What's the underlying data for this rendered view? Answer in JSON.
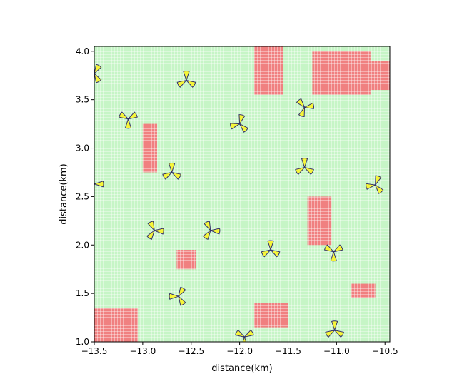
{
  "chart_data": {
    "type": "scatter",
    "title": "",
    "xlabel": "distance(km)",
    "ylabel": "distance(km)",
    "xlim": [
      -13.5,
      -10.45
    ],
    "ylim": [
      1.0,
      4.05
    ],
    "x_ticks": [
      -13.5,
      -13.0,
      -12.5,
      -12.0,
      -11.5,
      -11.0,
      -10.5
    ],
    "x_tick_labels": [
      "−13.5",
      "−13.0",
      "−12.5",
      "−12.0",
      "−11.5",
      "−11.0",
      "−10.5"
    ],
    "y_ticks": [
      1.0,
      1.5,
      2.0,
      2.5,
      3.0,
      3.5,
      4.0
    ],
    "y_tick_labels": [
      "1.0",
      "1.5",
      "2.0",
      "2.5",
      "3.0",
      "3.5",
      "4.0"
    ],
    "grid": false,
    "background_cells": {
      "description_type": "grid map",
      "colors": {
        "free": "#c6f5c6",
        "occupied": "#f08080",
        "cell_border": "#ffffff"
      },
      "occupied_regions": [
        {
          "x": [
            -13.5,
            -13.05
          ],
          "y": [
            1.0,
            1.35
          ]
        },
        {
          "x": [
            -13.0,
            -12.85
          ],
          "y": [
            2.75,
            3.25
          ]
        },
        {
          "x": [
            -11.85,
            -11.55
          ],
          "y": [
            3.55,
            4.05
          ]
        },
        {
          "x": [
            -11.25,
            -10.65
          ],
          "y": [
            3.55,
            4.0
          ]
        },
        {
          "x": [
            -10.72,
            -10.45
          ],
          "y": [
            3.6,
            3.9
          ]
        },
        {
          "x": [
            -11.3,
            -11.05
          ],
          "y": [
            2.0,
            2.5
          ]
        },
        {
          "x": [
            -11.85,
            -11.5
          ],
          "y": [
            1.15,
            1.4
          ]
        },
        {
          "x": [
            -10.85,
            -10.6
          ],
          "y": [
            1.45,
            1.6
          ]
        },
        {
          "x": [
            -12.65,
            -12.45
          ],
          "y": [
            1.75,
            1.95
          ]
        }
      ]
    },
    "marker_style": {
      "shape": "three-blade rotor",
      "fill": "#f5f53a",
      "edge": "#33336a"
    },
    "turbines": [
      {
        "x": -13.5,
        "y": 3.77,
        "angle": 30
      },
      {
        "x": -12.55,
        "y": 3.7,
        "angle": 0
      },
      {
        "x": -13.15,
        "y": 3.3,
        "angle": 60
      },
      {
        "x": -12.0,
        "y": 3.25,
        "angle": 15
      },
      {
        "x": -11.33,
        "y": 3.42,
        "angle": 80
      },
      {
        "x": -12.7,
        "y": 2.75,
        "angle": 0
      },
      {
        "x": -11.33,
        "y": 2.8,
        "angle": 0
      },
      {
        "x": -13.5,
        "y": 2.63,
        "angle": 90
      },
      {
        "x": -10.6,
        "y": 2.62,
        "angle": 20
      },
      {
        "x": -12.88,
        "y": 2.15,
        "angle": 95
      },
      {
        "x": -12.3,
        "y": 2.15,
        "angle": 95
      },
      {
        "x": -11.68,
        "y": 1.95,
        "angle": 0
      },
      {
        "x": -11.03,
        "y": 1.93,
        "angle": 60
      },
      {
        "x": -12.63,
        "y": 1.47,
        "angle": 30
      },
      {
        "x": -11.95,
        "y": 1.05,
        "angle": 60
      },
      {
        "x": -11.02,
        "y": 1.12,
        "angle": 0
      }
    ]
  }
}
